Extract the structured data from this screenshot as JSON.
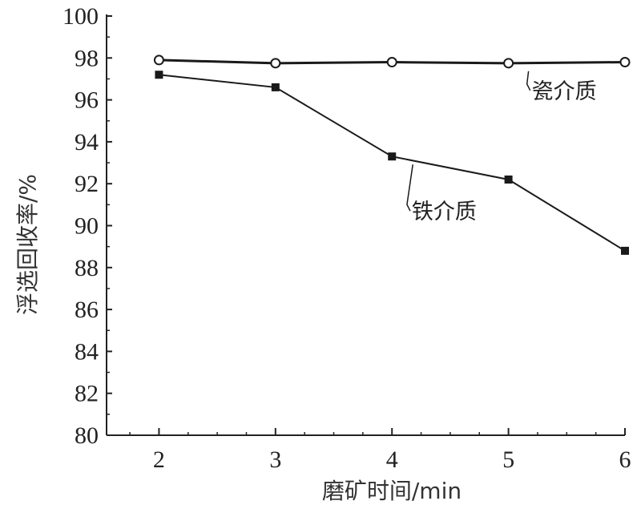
{
  "chart_data": {
    "type": "line",
    "title": "",
    "xlabel": "磨矿时间/min",
    "ylabel": "浮选回收率/%",
    "x": [
      2,
      3,
      4,
      5,
      6
    ],
    "xlim": [
      1.55,
      6
    ],
    "ylim": [
      80,
      100
    ],
    "xticks": [
      2,
      3,
      4,
      5,
      6
    ],
    "yticks": [
      80,
      82,
      84,
      86,
      88,
      90,
      92,
      94,
      96,
      98,
      100
    ],
    "grid": false,
    "legend": "none",
    "series": [
      {
        "name": "瓷介质",
        "marker": "open-circle",
        "values": [
          97.9,
          97.75,
          97.8,
          97.75,
          97.8
        ],
        "label_anchor_index": 3,
        "label_offset": [
          0.2,
          -1.3
        ]
      },
      {
        "name": "铁介质",
        "marker": "filled-square",
        "values": [
          97.2,
          96.6,
          93.3,
          92.2,
          88.8
        ],
        "label_anchor_index": 2,
        "label_offset": [
          0.17,
          -2.6
        ]
      }
    ]
  }
}
